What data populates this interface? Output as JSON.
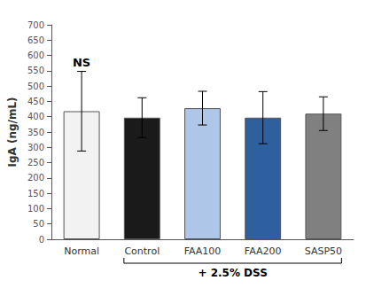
{
  "chart_data": {
    "type": "bar",
    "categories": [
      "Normal",
      "Control",
      "FAA100",
      "FAA200",
      "SASP50"
    ],
    "values": [
      418,
      397,
      428,
      397,
      410
    ],
    "errors": [
      130,
      65,
      55,
      85,
      55
    ],
    "colors": [
      "#f2f2f2",
      "#1a1a1a",
      "#aec6e8",
      "#2e5f9e",
      "#808080"
    ],
    "ylabel": "IgA (ng/mL)",
    "ylim": [
      0,
      700
    ],
    "yticks": [
      0,
      50,
      100,
      150,
      200,
      250,
      300,
      350,
      400,
      450,
      500,
      550,
      600,
      650,
      700
    ],
    "grid": false,
    "annotations": [
      {
        "text": "NS",
        "category": "Normal"
      },
      {
        "text": "+ 2.5% DSS",
        "from": "Control",
        "to": "SASP50"
      }
    ]
  }
}
